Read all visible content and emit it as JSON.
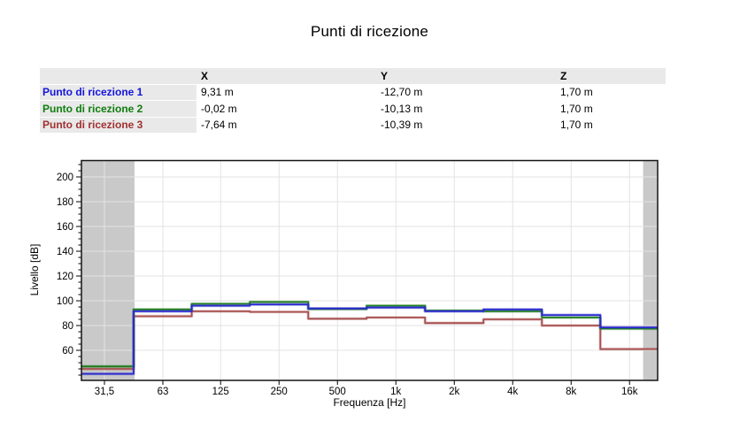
{
  "title": "Punti di ricezione",
  "table": {
    "headers": {
      "x": "X",
      "y": "Y",
      "z": "Z"
    },
    "rows": [
      {
        "label": "Punto di ricezione 1",
        "color": "#1414dd",
        "x": "9,31 m",
        "y": "-12,70 m",
        "z": "1,70 m"
      },
      {
        "label": "Punto di ricezione 2",
        "color": "#0e7d0e",
        "x": "-0,02 m",
        "y": "-10,13 m",
        "z": "1,70 m"
      },
      {
        "label": "Punto di ricezione 3",
        "color": "#a03030",
        "x": "-7,64 m",
        "y": "-10,39 m",
        "z": "1,70 m"
      }
    ]
  },
  "chart_data": {
    "type": "step-line",
    "title": "",
    "xlabel": "Frequenza [Hz]",
    "ylabel": "Livello [dB]",
    "x_scale": "log-octave-bands",
    "categories": [
      "31,5",
      "63",
      "125",
      "250",
      "500",
      "1k",
      "2k",
      "4k",
      "8k",
      "16k"
    ],
    "band_centers_hz": [
      31.5,
      63,
      125,
      250,
      500,
      1000,
      2000,
      4000,
      8000,
      16000
    ],
    "y_ticks": [
      60,
      80,
      100,
      120,
      140,
      160,
      180,
      200
    ],
    "y_minor_step": 5,
    "ylim": [
      36,
      213
    ],
    "xlim_hz": [
      24,
      22200
    ],
    "shaded_bands_hz": [
      [
        24,
        45
      ],
      [
        18800,
        22200
      ]
    ],
    "shaded_color": "#c9c9c9",
    "grid": true,
    "legend_position": "none",
    "series": [
      {
        "name": "Punto di ricezione 1",
        "color": "#2a2ace",
        "values": [
          41,
          91.5,
          96,
          97,
          93.8,
          94.5,
          91.5,
          93,
          88.5,
          78.5
        ]
      },
      {
        "name": "Punto di ricezione 2",
        "color": "#1e7d1e",
        "values": [
          47,
          93,
          97.5,
          99,
          93.3,
          96,
          92,
          91.5,
          86.5,
          77.5
        ]
      },
      {
        "name": "Punto di ricezione 3",
        "color": "#a85050",
        "values": [
          45,
          87.5,
          91.5,
          91,
          85.5,
          86.5,
          82,
          85,
          80,
          61
        ]
      }
    ]
  }
}
